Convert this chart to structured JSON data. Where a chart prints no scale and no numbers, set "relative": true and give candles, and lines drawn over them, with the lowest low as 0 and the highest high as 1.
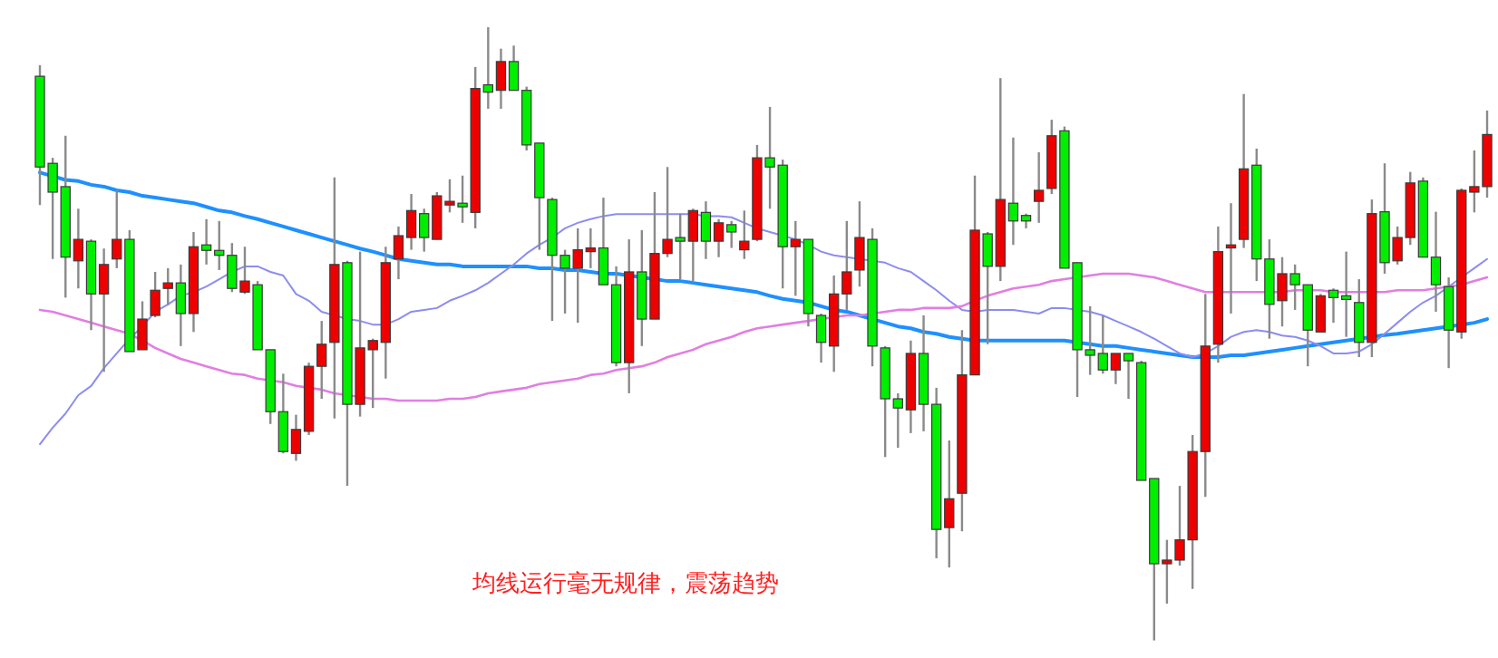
{
  "chart_data": {
    "type": "candlestick",
    "relative": true,
    "categories": [
      null,
      null,
      null,
      null,
      null,
      null,
      null,
      null,
      null,
      null,
      null,
      null,
      null,
      null,
      null,
      null,
      null,
      null,
      null,
      null,
      null,
      null,
      null,
      null,
      null,
      null,
      null,
      null,
      null,
      null,
      null,
      null,
      null,
      null,
      null,
      null,
      null,
      null,
      null,
      null,
      null,
      null,
      null,
      null,
      null,
      null,
      null,
      null,
      null,
      null,
      null,
      null,
      null,
      null,
      null,
      null,
      null,
      null,
      null,
      null,
      null,
      null,
      null,
      null,
      null,
      null,
      null,
      null,
      null,
      null,
      null,
      null,
      null,
      null,
      null,
      null,
      null,
      null,
      null,
      null,
      null,
      null,
      null,
      null,
      null,
      null,
      null,
      null,
      null,
      null,
      null,
      null,
      null,
      null,
      null,
      null,
      null,
      null,
      null,
      null,
      null,
      null,
      null,
      null,
      null,
      null,
      null,
      null,
      null,
      null,
      null,
      null,
      null,
      null
    ],
    "ohlc": [
      [
        0.92,
        0.938,
        0.71,
        0.772
      ],
      [
        0.778,
        0.787,
        0.622,
        0.731
      ],
      [
        0.74,
        0.823,
        0.559,
        0.625
      ],
      [
        0.619,
        0.704,
        0.574,
        0.654
      ],
      [
        0.651,
        0.654,
        0.506,
        0.565
      ],
      [
        0.565,
        0.639,
        0.438,
        0.613
      ],
      [
        0.622,
        0.734,
        0.607,
        0.654
      ],
      [
        0.654,
        0.669,
        0.471,
        0.471
      ],
      [
        0.474,
        0.553,
        0.474,
        0.524
      ],
      [
        0.53,
        0.601,
        0.527,
        0.571
      ],
      [
        0.574,
        0.607,
        0.547,
        0.583
      ],
      [
        0.583,
        0.613,
        0.48,
        0.533
      ],
      [
        0.533,
        0.666,
        0.503,
        0.642
      ],
      [
        0.645,
        0.687,
        0.613,
        0.636
      ],
      [
        0.636,
        0.684,
        0.604,
        0.628
      ],
      [
        0.628,
        0.648,
        0.568,
        0.574
      ],
      [
        0.568,
        0.642,
        0.565,
        0.586
      ],
      [
        0.58,
        0.586,
        0.474,
        0.474
      ],
      [
        0.474,
        0.474,
        0.353,
        0.373
      ],
      [
        0.373,
        0.435,
        0.305,
        0.308
      ],
      [
        0.305,
        0.368,
        0.293,
        0.344
      ],
      [
        0.341,
        0.453,
        0.335,
        0.447
      ],
      [
        0.447,
        0.521,
        0.394,
        0.483
      ],
      [
        0.486,
        0.755,
        0.362,
        0.613
      ],
      [
        0.616,
        0.619,
        0.252,
        0.385
      ],
      [
        0.385,
        0.634,
        0.365,
        0.477
      ],
      [
        0.474,
        0.492,
        0.379,
        0.489
      ],
      [
        0.486,
        0.642,
        0.427,
        0.616
      ],
      [
        0.622,
        0.675,
        0.589,
        0.66
      ],
      [
        0.657,
        0.728,
        0.637,
        0.701
      ],
      [
        0.696,
        0.704,
        0.634,
        0.657
      ],
      [
        0.654,
        0.731,
        0.654,
        0.725
      ],
      [
        0.71,
        0.752,
        0.698,
        0.716
      ],
      [
        0.713,
        0.758,
        0.681,
        0.707
      ],
      [
        0.698,
        0.935,
        0.672,
        0.9
      ],
      [
        0.906,
        1.0,
        0.867,
        0.894
      ],
      [
        0.897,
        0.965,
        0.867,
        0.944
      ],
      [
        0.944,
        0.97,
        0.897,
        0.897
      ],
      [
        0.897,
        0.903,
        0.799,
        0.808
      ],
      [
        0.811,
        0.811,
        0.637,
        0.722
      ],
      [
        0.719,
        0.722,
        0.521,
        0.628
      ],
      [
        0.628,
        0.637,
        0.533,
        0.607
      ],
      [
        0.607,
        0.672,
        0.518,
        0.637
      ],
      [
        0.634,
        0.672,
        0.607,
        0.64
      ],
      [
        0.64,
        0.722,
        0.58,
        0.58
      ],
      [
        0.58,
        0.61,
        0.447,
        0.453
      ],
      [
        0.453,
        0.654,
        0.403,
        0.601
      ],
      [
        0.601,
        0.669,
        0.48,
        0.524
      ],
      [
        0.524,
        0.731,
        0.524,
        0.631
      ],
      [
        0.631,
        0.772,
        0.625,
        0.654
      ],
      [
        0.657,
        0.696,
        0.589,
        0.651
      ],
      [
        0.651,
        0.704,
        0.586,
        0.701
      ],
      [
        0.698,
        0.716,
        0.622,
        0.651
      ],
      [
        0.651,
        0.687,
        0.625,
        0.681
      ],
      [
        0.678,
        0.684,
        0.64,
        0.666
      ],
      [
        0.637,
        0.701,
        0.622,
        0.651
      ],
      [
        0.654,
        0.808,
        0.651,
        0.787
      ],
      [
        0.787,
        0.87,
        0.704,
        0.772
      ],
      [
        0.775,
        0.784,
        0.574,
        0.642
      ],
      [
        0.642,
        0.684,
        0.562,
        0.654
      ],
      [
        0.654,
        0.654,
        0.512,
        0.533
      ],
      [
        0.53,
        0.533,
        0.453,
        0.486
      ],
      [
        0.48,
        0.595,
        0.438,
        0.565
      ],
      [
        0.565,
        0.684,
        0.539,
        0.601
      ],
      [
        0.604,
        0.716,
        0.577,
        0.657
      ],
      [
        0.654,
        0.672,
        0.447,
        0.48
      ],
      [
        0.477,
        0.48,
        0.299,
        0.394
      ],
      [
        0.394,
        0.403,
        0.314,
        0.379
      ],
      [
        0.376,
        0.489,
        0.338,
        0.468
      ],
      [
        0.468,
        0.53,
        0.341,
        0.385
      ],
      [
        0.385,
        0.412,
        0.134,
        0.181
      ],
      [
        0.184,
        0.326,
        0.119,
        0.231
      ],
      [
        0.24,
        0.506,
        0.178,
        0.433
      ],
      [
        0.433,
        0.758,
        0.433,
        0.669
      ],
      [
        0.663,
        0.666,
        0.483,
        0.61
      ],
      [
        0.61,
        0.917,
        0.586,
        0.719
      ],
      [
        0.713,
        0.82,
        0.645,
        0.684
      ],
      [
        0.693,
        0.696,
        0.672,
        0.684
      ],
      [
        0.716,
        0.796,
        0.681,
        0.734
      ],
      [
        0.737,
        0.849,
        0.728,
        0.823
      ],
      [
        0.831,
        0.838,
        0.607,
        0.607
      ],
      [
        0.616,
        0.616,
        0.397,
        0.474
      ],
      [
        0.474,
        0.545,
        0.433,
        0.465
      ],
      [
        0.468,
        0.53,
        0.435,
        0.441
      ],
      [
        0.441,
        0.468,
        0.418,
        0.468
      ],
      [
        0.468,
        0.468,
        0.394,
        0.456
      ],
      [
        0.453,
        0.456,
        0.261,
        0.261
      ],
      [
        0.264,
        0.264,
        0,
        0.125
      ],
      [
        0.125,
        0.164,
        0.06,
        0.131
      ],
      [
        0.131,
        0.252,
        0.122,
        0.164
      ],
      [
        0.164,
        0.335,
        0.084,
        0.308
      ],
      [
        0.308,
        0.565,
        0.234,
        0.48
      ],
      [
        0.483,
        0.675,
        0.453,
        0.634
      ],
      [
        0.64,
        0.713,
        0.533,
        0.645
      ],
      [
        0.654,
        0.891,
        0.64,
        0.769
      ],
      [
        0.775,
        0.802,
        0.586,
        0.622
      ],
      [
        0.622,
        0.654,
        0.492,
        0.548
      ],
      [
        0.554,
        0.625,
        0.512,
        0.598
      ],
      [
        0.598,
        0.613,
        0.539,
        0.58
      ],
      [
        0.58,
        0.58,
        0.447,
        0.506
      ],
      [
        0.503,
        0.565,
        0.503,
        0.562
      ],
      [
        0.571,
        0.574,
        0.518,
        0.559
      ],
      [
        0.562,
        0.634,
        0.495,
        0.556
      ],
      [
        0.551,
        0.589,
        0.462,
        0.486
      ],
      [
        0.486,
        0.719,
        0.462,
        0.696
      ],
      [
        0.699,
        0.778,
        0.598,
        0.616
      ],
      [
        0.619,
        0.675,
        0.613,
        0.657
      ],
      [
        0.657,
        0.764,
        0.645,
        0.746
      ],
      [
        0.749,
        0.755,
        0.625,
        0.625
      ],
      [
        0.625,
        0.699,
        0.536,
        0.58
      ],
      [
        0.577,
        0.592,
        0.444,
        0.506
      ],
      [
        0.503,
        0.737,
        0.492,
        0.734
      ],
      [
        0.731,
        0.799,
        0.698,
        0.74
      ],
      [
        0.74,
        0.864,
        0.722,
        0.825
      ]
    ],
    "colors": [
      "#00ee00",
      "#00ee00",
      "#00ee00",
      "#ee0000",
      "#00ee00",
      "#ee0000",
      "#ee0000",
      "#00ee00",
      "#ee0000",
      "#ee0000",
      "#ee0000",
      "#00ee00",
      "#ee0000",
      "#00ee00",
      "#00ee00",
      "#00ee00",
      "#ee0000",
      "#00ee00",
      "#00ee00",
      "#00ee00",
      "#ee0000",
      "#ee0000",
      "#ee0000",
      "#ee0000",
      "#00ee00",
      "#ee0000",
      "#ee0000",
      "#ee0000",
      "#ee0000",
      "#ee0000",
      "#00ee00",
      "#ee0000",
      "#ee0000",
      "#00ee00",
      "#ee0000",
      "#00ee00",
      "#ee0000",
      "#00ee00",
      "#00ee00",
      "#00ee00",
      "#00ee00",
      "#00ee00",
      "#ee0000",
      "#ee0000",
      "#00ee00",
      "#00ee00",
      "#ee0000",
      "#00ee00",
      "#ee0000",
      "#ee0000",
      "#00ee00",
      "#ee0000",
      "#00ee00",
      "#ee0000",
      "#00ee00",
      "#ee0000",
      "#ee0000",
      "#00ee00",
      "#00ee00",
      "#ee0000",
      "#00ee00",
      "#00ee00",
      "#ee0000",
      "#ee0000",
      "#ee0000",
      "#00ee00",
      "#00ee00",
      "#00ee00",
      "#ee0000",
      "#00ee00",
      "#00ee00",
      "#ee0000",
      "#ee0000",
      "#ee0000",
      "#00ee00",
      "#ee0000",
      "#00ee00",
      "#00ee00",
      "#ee0000",
      "#ee0000",
      "#00ee00",
      "#00ee00",
      "#00ee00",
      "#00ee00",
      "#ee0000",
      "#00ee00",
      "#00ee00",
      "#00ee00",
      "#ee0000",
      "#ee0000",
      "#ee0000",
      "#ee0000",
      "#ee0000",
      "#ee0000",
      "#ee0000",
      "#00ee00",
      "#00ee00",
      "#ee0000",
      "#00ee00",
      "#00ee00",
      "#ee0000",
      "#00ee00",
      "#00ee00",
      "#00ee00",
      "#ee0000",
      "#00ee00",
      "#ee0000",
      "#ee0000",
      "#00ee00",
      "#00ee00",
      "#00ee00",
      "#ee0000",
      "#ee0000",
      "#ee0000"
    ],
    "series": [
      {
        "type": "line",
        "color": "#1e90ff",
        "values": [
          0.763,
          0.757,
          0.751,
          0.749,
          0.743,
          0.74,
          0.734,
          0.731,
          0.725,
          0.722,
          0.719,
          0.716,
          0.713,
          0.707,
          0.701,
          0.698,
          0.692,
          0.687,
          0.681,
          0.675,
          0.669,
          0.663,
          0.657,
          0.651,
          0.645,
          0.639,
          0.634,
          0.628,
          0.622,
          0.619,
          0.616,
          0.613,
          0.613,
          0.61,
          0.61,
          0.61,
          0.61,
          0.61,
          0.61,
          0.607,
          0.607,
          0.604,
          0.604,
          0.601,
          0.598,
          0.598,
          0.595,
          0.592,
          0.589,
          0.586,
          0.586,
          0.583,
          0.58,
          0.577,
          0.574,
          0.571,
          0.568,
          0.562,
          0.557,
          0.554,
          0.551,
          0.545,
          0.539,
          0.536,
          0.53,
          0.524,
          0.518,
          0.512,
          0.509,
          0.503,
          0.5,
          0.495,
          0.492,
          0.489,
          0.489,
          0.489,
          0.489,
          0.489,
          0.489,
          0.489,
          0.489,
          0.486,
          0.483,
          0.48,
          0.48,
          0.477,
          0.474,
          0.471,
          0.468,
          0.465,
          0.462,
          0.462,
          0.462,
          0.465,
          0.465,
          0.468,
          0.471,
          0.474,
          0.477,
          0.48,
          0.483,
          0.486,
          0.489,
          0.492,
          0.495,
          0.498,
          0.5,
          0.503,
          0.506,
          0.509,
          0.512,
          0.515,
          0.518,
          0.524
        ]
      },
      {
        "type": "line",
        "color": "#8c8cf0",
        "values": [
          0.32,
          0.347,
          0.37,
          0.4,
          0.415,
          0.444,
          0.468,
          0.492,
          0.512,
          0.536,
          0.548,
          0.562,
          0.568,
          0.577,
          0.589,
          0.601,
          0.61,
          0.61,
          0.601,
          0.595,
          0.565,
          0.554,
          0.536,
          0.53,
          0.524,
          0.521,
          0.515,
          0.515,
          0.524,
          0.536,
          0.539,
          0.542,
          0.554,
          0.562,
          0.571,
          0.583,
          0.598,
          0.613,
          0.631,
          0.645,
          0.657,
          0.672,
          0.681,
          0.687,
          0.692,
          0.695,
          0.695,
          0.695,
          0.695,
          0.695,
          0.695,
          0.695,
          0.692,
          0.692,
          0.69,
          0.681,
          0.672,
          0.666,
          0.66,
          0.654,
          0.645,
          0.634,
          0.628,
          0.625,
          0.622,
          0.619,
          0.616,
          0.607,
          0.601,
          0.586,
          0.571,
          0.554,
          0.539,
          0.536,
          0.539,
          0.539,
          0.539,
          0.536,
          0.533,
          0.542,
          0.542,
          0.539,
          0.536,
          0.53,
          0.521,
          0.512,
          0.503,
          0.492,
          0.48,
          0.468,
          0.462,
          0.468,
          0.48,
          0.495,
          0.503,
          0.506,
          0.503,
          0.497,
          0.495,
          0.489,
          0.48,
          0.468,
          0.468,
          0.471,
          0.483,
          0.5,
          0.518,
          0.536,
          0.551,
          0.562,
          0.577,
          0.592,
          0.607,
          0.622
        ]
      },
      {
        "type": "line",
        "color": "#e27ee2",
        "values": [
          0.539,
          0.536,
          0.53,
          0.524,
          0.518,
          0.512,
          0.506,
          0.5,
          0.489,
          0.477,
          0.468,
          0.459,
          0.453,
          0.447,
          0.441,
          0.435,
          0.433,
          0.427,
          0.424,
          0.421,
          0.415,
          0.412,
          0.409,
          0.403,
          0.4,
          0.397,
          0.394,
          0.394,
          0.391,
          0.391,
          0.391,
          0.391,
          0.394,
          0.394,
          0.397,
          0.403,
          0.406,
          0.409,
          0.412,
          0.418,
          0.421,
          0.424,
          0.427,
          0.433,
          0.435,
          0.441,
          0.444,
          0.447,
          0.453,
          0.462,
          0.468,
          0.474,
          0.483,
          0.489,
          0.495,
          0.503,
          0.509,
          0.512,
          0.515,
          0.518,
          0.521,
          0.524,
          0.527,
          0.53,
          0.53,
          0.533,
          0.536,
          0.539,
          0.539,
          0.542,
          0.542,
          0.542,
          0.545,
          0.554,
          0.562,
          0.568,
          0.574,
          0.577,
          0.58,
          0.586,
          0.589,
          0.592,
          0.595,
          0.598,
          0.598,
          0.598,
          0.595,
          0.592,
          0.586,
          0.58,
          0.574,
          0.568,
          0.568,
          0.568,
          0.568,
          0.568,
          0.568,
          0.568,
          0.571,
          0.571,
          0.571,
          0.568,
          0.568,
          0.568,
          0.568,
          0.568,
          0.571,
          0.571,
          0.571,
          0.574,
          0.577,
          0.58,
          0.586,
          0.592
        ]
      }
    ],
    "annotations": [
      "均线运行毫无规律，震荡趋势"
    ]
  }
}
